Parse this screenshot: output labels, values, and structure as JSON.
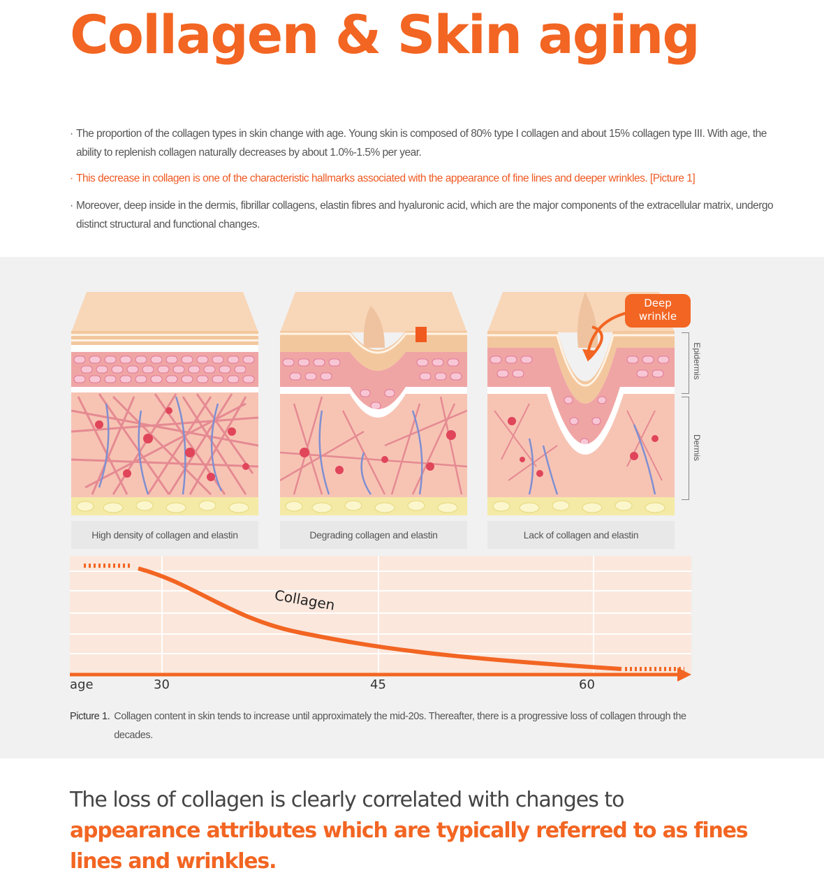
{
  "title": "Collagen & Skin aging",
  "paragraphs": [
    {
      "bullet": "·",
      "text": "The proportion of the collagen types in skin change with age. Young skin is composed of 80% type I collagen and about 15% collagen type III. With age, the ability to replenish collagen naturally decreases by about 1.0%-1.5% per year."
    },
    {
      "bullet": "·",
      "text": "This decrease in collagen is one of the characteristic hallmarks associated with the appearance of fine lines and deeper wrinkles. [Picture 1]"
    },
    {
      "bullet": "·",
      "text": "Moreover, deep inside in the dermis, fibrillar collagens, elastin fibres and hyaluronic acid, which are the major components of the extracellular matrix, undergo distinct structural and functional changes."
    }
  ],
  "illustration": {
    "captions": [
      "High density of collagen and elastin",
      "Degrading collagen and elastin",
      "Lack of collagen and elastin"
    ],
    "callout": [
      "Deep",
      "wrinkle"
    ],
    "layers": [
      "Epidermis",
      "Dermis"
    ]
  },
  "chart_data": {
    "type": "line",
    "series": [
      {
        "name": "Collagen"
      }
    ],
    "xlabel": "age",
    "x_ticks": [
      30,
      45,
      60
    ],
    "x_tick_labels": [
      "30",
      "45",
      "60"
    ],
    "grid": true,
    "trend": "decreasing"
  },
  "footnote": {
    "label": "Picture 1.",
    "text": "Collagen content in skin tends to increase until approximately the mid-20s. Thereafter, there is a progressive loss of collagen through the decades."
  },
  "conclusion": {
    "plain": "The loss of collagen is clearly correlated with changes to",
    "emphasis": "appearance attributes which are typically referred to as fines lines and wrinkles."
  },
  "colors": {
    "accent": "#f26522",
    "text": "#555555",
    "panel": "#f1f1f1",
    "chart_bg": "#fbe7dc"
  }
}
